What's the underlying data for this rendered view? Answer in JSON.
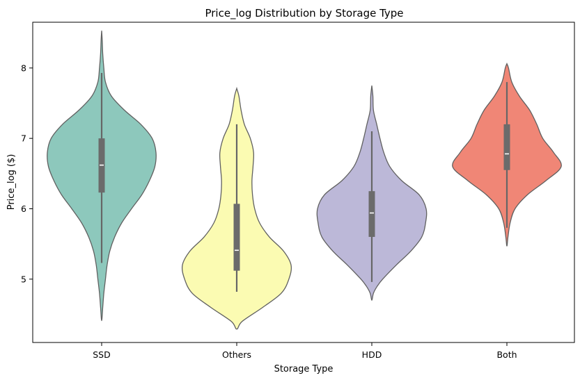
{
  "chart_data": {
    "type": "violin",
    "title": "Price_log Distribution by Storage Type",
    "xlabel": "Storage Type",
    "ylabel": "Price_log ($)",
    "ylim": [
      4.1,
      8.65
    ],
    "yticks": [
      5,
      6,
      7,
      8
    ],
    "grid": false,
    "categories": [
      "SSD",
      "Others",
      "HDD",
      "Both"
    ],
    "colors": [
      "#8dc8bc",
      "#fbfbb2",
      "#bcb8d8",
      "#f08676"
    ],
    "violins": [
      {
        "category": "SSD",
        "median": 6.62,
        "q1": 6.23,
        "q3": 7.0,
        "whisker_low": 5.23,
        "whisker_high": 7.93,
        "profile": [
          [
            4.41,
            0.0
          ],
          [
            4.6,
            0.02
          ],
          [
            4.8,
            0.04
          ],
          [
            5.0,
            0.07
          ],
          [
            5.2,
            0.1
          ],
          [
            5.4,
            0.15
          ],
          [
            5.6,
            0.24
          ],
          [
            5.8,
            0.37
          ],
          [
            6.0,
            0.55
          ],
          [
            6.2,
            0.74
          ],
          [
            6.4,
            0.88
          ],
          [
            6.6,
            0.98
          ],
          [
            6.8,
            1.0
          ],
          [
            7.0,
            0.93
          ],
          [
            7.2,
            0.72
          ],
          [
            7.4,
            0.42
          ],
          [
            7.6,
            0.18
          ],
          [
            7.8,
            0.07
          ],
          [
            8.0,
            0.04
          ],
          [
            8.2,
            0.02
          ],
          [
            8.4,
            0.01
          ],
          [
            8.53,
            0.0
          ]
        ]
      },
      {
        "category": "Others",
        "median": 5.41,
        "q1": 5.12,
        "q3": 6.07,
        "whisker_low": 4.82,
        "whisker_high": 7.2,
        "profile": [
          [
            4.29,
            0.0
          ],
          [
            4.4,
            0.1
          ],
          [
            4.6,
            0.48
          ],
          [
            4.8,
            0.82
          ],
          [
            5.0,
            0.96
          ],
          [
            5.2,
            1.0
          ],
          [
            5.4,
            0.86
          ],
          [
            5.6,
            0.6
          ],
          [
            5.8,
            0.42
          ],
          [
            6.0,
            0.33
          ],
          [
            6.2,
            0.29
          ],
          [
            6.4,
            0.28
          ],
          [
            6.6,
            0.3
          ],
          [
            6.8,
            0.31
          ],
          [
            7.0,
            0.25
          ],
          [
            7.2,
            0.14
          ],
          [
            7.4,
            0.08
          ],
          [
            7.6,
            0.04
          ],
          [
            7.71,
            0.0
          ]
        ]
      },
      {
        "category": "HDD",
        "median": 5.94,
        "q1": 5.6,
        "q3": 6.25,
        "whisker_low": 4.96,
        "whisker_high": 7.1,
        "profile": [
          [
            4.7,
            0.0
          ],
          [
            4.8,
            0.03
          ],
          [
            4.9,
            0.1
          ],
          [
            5.0,
            0.2
          ],
          [
            5.2,
            0.45
          ],
          [
            5.4,
            0.72
          ],
          [
            5.6,
            0.92
          ],
          [
            5.8,
            0.99
          ],
          [
            6.0,
            1.0
          ],
          [
            6.2,
            0.87
          ],
          [
            6.4,
            0.55
          ],
          [
            6.6,
            0.33
          ],
          [
            6.8,
            0.22
          ],
          [
            7.0,
            0.15
          ],
          [
            7.2,
            0.09
          ],
          [
            7.4,
            0.03
          ],
          [
            7.6,
            0.02
          ],
          [
            7.75,
            0.0
          ]
        ]
      },
      {
        "category": "Both",
        "median": 6.78,
        "q1": 6.55,
        "q3": 7.2,
        "whisker_low": 5.73,
        "whisker_high": 7.8,
        "profile": [
          [
            5.47,
            0.0
          ],
          [
            5.6,
            0.02
          ],
          [
            5.8,
            0.06
          ],
          [
            6.0,
            0.15
          ],
          [
            6.2,
            0.38
          ],
          [
            6.4,
            0.72
          ],
          [
            6.6,
            1.0
          ],
          [
            6.8,
            0.86
          ],
          [
            7.0,
            0.66
          ],
          [
            7.2,
            0.55
          ],
          [
            7.4,
            0.42
          ],
          [
            7.6,
            0.23
          ],
          [
            7.8,
            0.09
          ],
          [
            8.0,
            0.03
          ],
          [
            8.06,
            0.0
          ]
        ]
      }
    ]
  }
}
